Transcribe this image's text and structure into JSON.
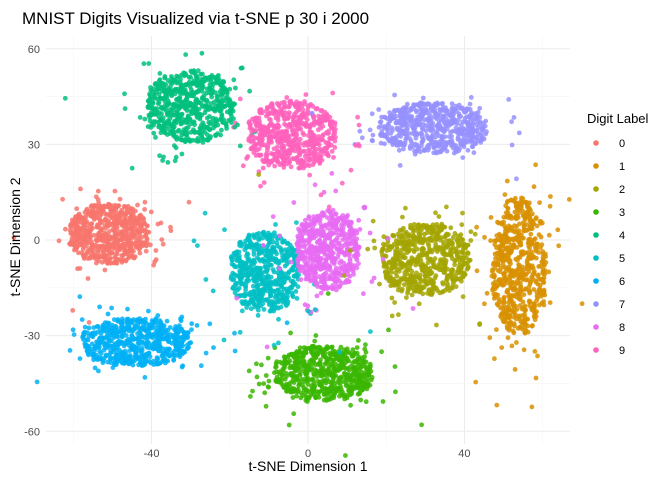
{
  "chart_data": {
    "type": "scatter",
    "title": "MNIST Digits Visualized via t-SNE p 30 i 2000",
    "xlabel": "t-SNE Dimension 1",
    "ylabel": "t-SNE Dimension 2",
    "xlim": [
      -67,
      67
    ],
    "ylim": [
      -64,
      64
    ],
    "x_ticks": [
      -40,
      0,
      40
    ],
    "y_ticks": [
      -60,
      -30,
      0,
      30,
      60
    ],
    "x_tick_labels": [
      "-40",
      "0",
      "40"
    ],
    "y_tick_labels": [
      "-60",
      "-30",
      "0",
      "30",
      "60"
    ],
    "grid": true,
    "legend": {
      "title": "Digit Label",
      "position": "right",
      "entries": [
        "0",
        "1",
        "2",
        "3",
        "4",
        "5",
        "6",
        "7",
        "8",
        "9"
      ]
    },
    "colors": [
      "#F8766D",
      "#D89000",
      "#A3A500",
      "#39B600",
      "#00BF7D",
      "#00BFC4",
      "#00B0F6",
      "#9590FF",
      "#E76BF3",
      "#FF62BC"
    ],
    "series": [
      {
        "name": "0",
        "center": [
          -51,
          2
        ],
        "spread": [
          8,
          7.5
        ],
        "n": 650
      },
      {
        "name": "1",
        "center": [
          54,
          -8
        ],
        "spread": [
          5.5,
          17
        ],
        "n": 620
      },
      {
        "name": "2",
        "center": [
          30,
          -6
        ],
        "spread": [
          9,
          9
        ],
        "n": 600
      },
      {
        "name": "3",
        "center": [
          4,
          -42
        ],
        "spread": [
          10,
          7
        ],
        "n": 600
      },
      {
        "name": "4",
        "center": [
          -30,
          42
        ],
        "spread": [
          9,
          9
        ],
        "n": 600
      },
      {
        "name": "5",
        "center": [
          -11,
          -10
        ],
        "spread": [
          7,
          10
        ],
        "n": 560
      },
      {
        "name": "6",
        "center": [
          -44,
          -32
        ],
        "spread": [
          11,
          6
        ],
        "n": 600
      },
      {
        "name": "7",
        "center": [
          32,
          35
        ],
        "spread": [
          11,
          6.5
        ],
        "n": 560
      },
      {
        "name": "8",
        "center": [
          5,
          -3
        ],
        "spread": [
          6.5,
          10
        ],
        "n": 560
      },
      {
        "name": "9",
        "center": [
          -4,
          33
        ],
        "spread": [
          9,
          8.5
        ],
        "n": 580
      }
    ]
  }
}
